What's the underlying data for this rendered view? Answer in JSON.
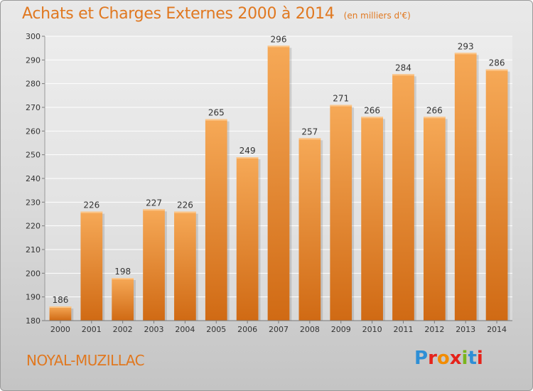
{
  "title": "Achats et Charges Externes 2000 à 2014",
  "unit_note": "(en milliers d'€)",
  "city": "NOYAL-MUZILLAC",
  "logo": {
    "text": "Proxiti",
    "colors": [
      "#2e8fd6",
      "#e5231b",
      "#f28c00",
      "#e5231b",
      "#7ab51d",
      "#2e8fd6",
      "#e5231b"
    ]
  },
  "colors": {
    "accent": "#e07820",
    "bar_top": "#f6a957",
    "bar_bottom": "#d06a14",
    "grid": "#ffffff"
  },
  "chart_data": {
    "type": "bar",
    "title": "Achats et Charges Externes 2000 à 2014",
    "subtitle": "(en milliers d'€)",
    "categories": [
      "2000",
      "2001",
      "2002",
      "2003",
      "2004",
      "2005",
      "2006",
      "2007",
      "2008",
      "2009",
      "2010",
      "2011",
      "2012",
      "2013",
      "2014"
    ],
    "values": [
      186,
      226,
      198,
      227,
      226,
      265,
      249,
      296,
      257,
      271,
      266,
      284,
      266,
      293,
      286
    ],
    "ylim": [
      180,
      300
    ],
    "yticks": [
      180,
      190,
      200,
      210,
      220,
      230,
      240,
      250,
      260,
      270,
      280,
      290,
      300
    ],
    "grid": true,
    "data_labels": true
  }
}
